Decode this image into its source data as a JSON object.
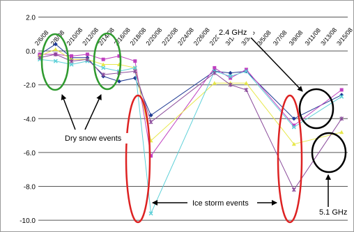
{
  "chart_data": {
    "type": "line",
    "title": "",
    "xlabel": "",
    "ylabel": "",
    "ylim": [
      -10,
      2
    ],
    "y_ticks": [
      "2.0",
      "0.0",
      "-2.0",
      "-4.0",
      "-6.0",
      "-8.0",
      "-10.0"
    ],
    "grid": "horizontal",
    "categories": [
      "2/6/08",
      "2/8/08",
      "2/10/08",
      "2/12/08",
      "2/14/08",
      "2/16/08",
      "2/18/08",
      "2/20/08",
      "2/22/08",
      "2/24/08",
      "2/26/08",
      "2/28/08",
      "3/1/08",
      "3/3/08",
      "3/5/08",
      "3/7/08",
      "3/9/08",
      "3/11/08",
      "3/13/08",
      "3/15/08"
    ],
    "x_ticks": [
      "2/6/08",
      "2/8/08",
      "2/10/08",
      "2/12/08",
      "2/14/08",
      "2/16/08",
      "2/18/08",
      "2/20/08",
      "2/22/08",
      "2/24/08",
      "2/26/08",
      "2/28/08",
      "3/1/08",
      "3/3/08",
      "3/5/08",
      "3/7/08",
      "3/9/08",
      "3/11/08",
      "3/13/08",
      "3/15/08"
    ],
    "series": [
      {
        "color": "#1f3a93",
        "marker": "diamond",
        "values": [
          -0.2,
          0.4,
          -0.4,
          -0.4,
          -1.5,
          -1.8,
          -1.6,
          -3.8,
          null,
          null,
          null,
          -1.2,
          -1.3,
          -1.2,
          null,
          null,
          -4.0,
          null,
          null,
          -2.6
        ]
      },
      {
        "color": "#c040c0",
        "marker": "square",
        "values": [
          -0.2,
          -0.2,
          -0.3,
          -0.2,
          -0.5,
          -0.3,
          -0.6,
          -6.2,
          null,
          null,
          null,
          -1.0,
          -1.6,
          -1.1,
          null,
          null,
          -4.4,
          null,
          null,
          -2.3
        ]
      },
      {
        "color": "#e8e84a",
        "marker": "triangle",
        "values": [
          -0.3,
          0.1,
          -0.5,
          -0.5,
          -0.8,
          -0.8,
          -1.0,
          -5.3,
          null,
          null,
          null,
          -1.9,
          -1.9,
          -1.9,
          null,
          null,
          -5.5,
          null,
          null,
          -4.8
        ]
      },
      {
        "color": "#5dd0d8",
        "marker": "x",
        "values": [
          -0.5,
          -0.6,
          -0.8,
          -0.6,
          -1.0,
          -1.2,
          -1.0,
          -9.6,
          null,
          null,
          null,
          -1.2,
          -1.5,
          -1.2,
          null,
          null,
          -4.5,
          null,
          null,
          -2.7
        ]
      },
      {
        "color": "#8a4a9a",
        "marker": "star",
        "values": [
          -0.4,
          -0.2,
          -0.6,
          -0.5,
          -1.4,
          -1.3,
          -1.2,
          -4.2,
          null,
          null,
          null,
          -1.3,
          -2.0,
          -2.3,
          null,
          null,
          -8.2,
          null,
          null,
          -4.0
        ]
      }
    ],
    "annotations": {
      "dry_snow": "Dry snow events",
      "ice_storm": "Ice storm events",
      "ghz_24": "2.4 GHz",
      "ghz_51": "5.1 GHz"
    }
  }
}
